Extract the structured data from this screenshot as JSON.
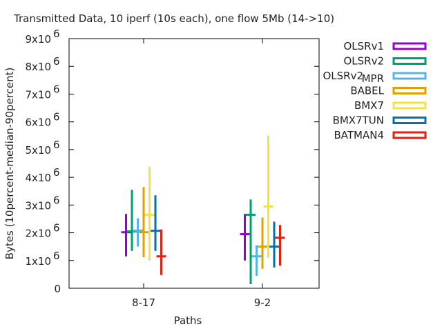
{
  "chart_data": {
    "type": "errorbar",
    "title": "Transmitted Data, 10 iperf (10s each), one flow 5Mb (14->10)",
    "xlabel": "Paths",
    "ylabel": "Bytes (10percent-median-90percent)",
    "ylim": [
      0,
      9000000
    ],
    "y_ticks": [
      {
        "value": 0,
        "label": "0",
        "exp": ""
      },
      {
        "value": 1000000,
        "label": "1x10",
        "exp": "6"
      },
      {
        "value": 2000000,
        "label": "2x10",
        "exp": "6"
      },
      {
        "value": 3000000,
        "label": "3x10",
        "exp": "6"
      },
      {
        "value": 4000000,
        "label": "4x10",
        "exp": "6"
      },
      {
        "value": 5000000,
        "label": "5x10",
        "exp": "6"
      },
      {
        "value": 6000000,
        "label": "6x10",
        "exp": "6"
      },
      {
        "value": 7000000,
        "label": "7x10",
        "exp": "6"
      },
      {
        "value": 8000000,
        "label": "8x10",
        "exp": "6"
      },
      {
        "value": 9000000,
        "label": "9x10",
        "exp": "6"
      }
    ],
    "categories": [
      "8-17",
      "9-2"
    ],
    "legend_position": "outside-right",
    "series": [
      {
        "name": "OLSRv1",
        "sub": "",
        "color": "#9400d3",
        "values": [
          {
            "p10": 1150000,
            "median": 2020000,
            "p90": 2680000
          },
          {
            "p10": 1000000,
            "median": 1950000,
            "p90": 2680000
          }
        ]
      },
      {
        "name": "OLSRv2",
        "sub": "",
        "color": "#009e73",
        "values": [
          {
            "p10": 1350000,
            "median": 2050000,
            "p90": 3550000
          },
          {
            "p10": 150000,
            "median": 2650000,
            "p90": 3200000
          }
        ]
      },
      {
        "name": "OLSRv2",
        "sub": "MPR",
        "color": "#56b4e9",
        "values": [
          {
            "p10": 1500000,
            "median": 2080000,
            "p90": 2520000
          },
          {
            "p10": 450000,
            "median": 1150000,
            "p90": 1550000
          }
        ]
      },
      {
        "name": "BABEL",
        "sub": "",
        "color": "#e69f00",
        "values": [
          {
            "p10": 1120000,
            "median": 2020000,
            "p90": 3650000
          },
          {
            "p10": 700000,
            "median": 1500000,
            "p90": 2550000
          }
        ]
      },
      {
        "name": "BMX7",
        "sub": "",
        "color": "#f0e442",
        "values": [
          {
            "p10": 1000000,
            "median": 2650000,
            "p90": 4380000
          },
          {
            "p10": 1100000,
            "median": 2950000,
            "p90": 5500000
          }
        ]
      },
      {
        "name": "BMX7TUN",
        "sub": "",
        "color": "#0072b2",
        "values": [
          {
            "p10": 1350000,
            "median": 2070000,
            "p90": 3350000
          },
          {
            "p10": 750000,
            "median": 1500000,
            "p90": 2400000
          }
        ]
      },
      {
        "name": "BATMAN4",
        "sub": "",
        "color": "#e51e10",
        "values": [
          {
            "p10": 480000,
            "median": 1150000,
            "p90": 2120000
          },
          {
            "p10": 820000,
            "median": 1820000,
            "p90": 2280000
          }
        ]
      }
    ]
  }
}
